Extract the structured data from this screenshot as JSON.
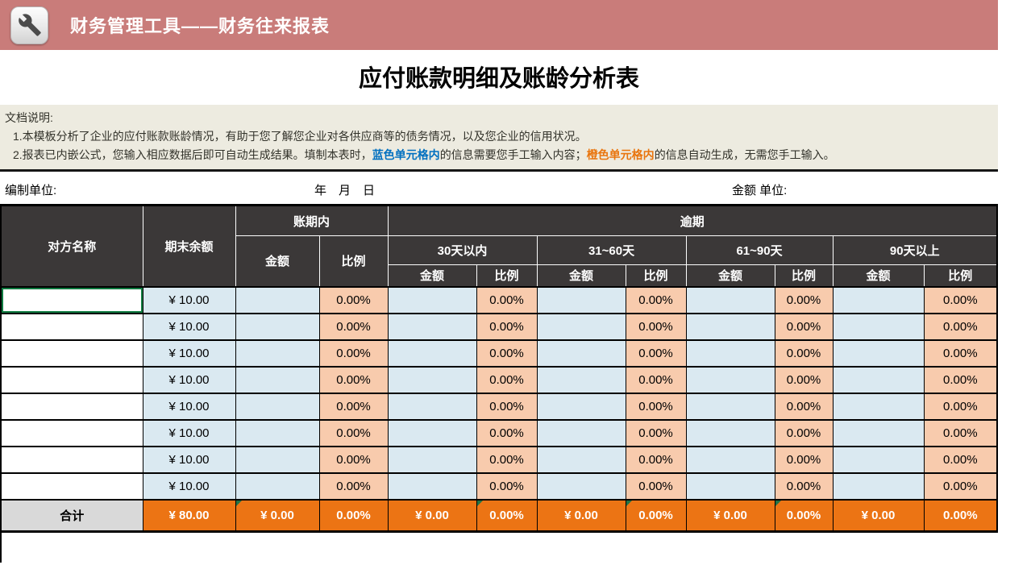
{
  "banner": {
    "title": "财务管理工具——财务往来报表",
    "icon": "wrench-icon",
    "bg_color": "#C97C7A"
  },
  "page_title": "应付账款明细及账龄分析表",
  "notice": {
    "heading": "文档说明:",
    "line1": "1.本模板分析了企业的应付账款账龄情况，有助于您了解您企业对各供应商等的债务情况，以及您企业的信用状况。",
    "line2": {
      "pre": "2.报表已内嵌公式，您输入相应数据后即可自动生成结果。填制本表时，",
      "blue": "蓝色单元格内",
      "mid": "的信息需要您手工输入内容；",
      "orange": "橙色单元格内",
      "post": "的信息自动生成，无需您手工输入。"
    }
  },
  "meta": {
    "unit_label": "编制单位:",
    "date_label": "年　月　日",
    "amount_unit_label": "金额 单位:"
  },
  "table": {
    "headers": {
      "counterparty": "对方名称",
      "ending_balance": "期末余额",
      "within_terms": "账期内",
      "overdue": "逾期",
      "amount": "金额",
      "ratio": "比例",
      "buckets": [
        "30天以内",
        "31~60天",
        "61~90天",
        "90天以上"
      ]
    },
    "rows": [
      {
        "name": "",
        "balance": "¥ 10.00",
        "cells": [
          "",
          "0.00%",
          "",
          "0.00%",
          "",
          "0.00%",
          "",
          "0.00%",
          "",
          "0.00%"
        ]
      },
      {
        "name": "",
        "balance": "¥ 10.00",
        "cells": [
          "",
          "0.00%",
          "",
          "0.00%",
          "",
          "0.00%",
          "",
          "0.00%",
          "",
          "0.00%"
        ]
      },
      {
        "name": "",
        "balance": "¥ 10.00",
        "cells": [
          "",
          "0.00%",
          "",
          "0.00%",
          "",
          "0.00%",
          "",
          "0.00%",
          "",
          "0.00%"
        ]
      },
      {
        "name": "",
        "balance": "¥ 10.00",
        "cells": [
          "",
          "0.00%",
          "",
          "0.00%",
          "",
          "0.00%",
          "",
          "0.00%",
          "",
          "0.00%"
        ]
      },
      {
        "name": "",
        "balance": "¥ 10.00",
        "cells": [
          "",
          "0.00%",
          "",
          "0.00%",
          "",
          "0.00%",
          "",
          "0.00%",
          "",
          "0.00%"
        ]
      },
      {
        "name": "",
        "balance": "¥ 10.00",
        "cells": [
          "",
          "0.00%",
          "",
          "0.00%",
          "",
          "0.00%",
          "",
          "0.00%",
          "",
          "0.00%"
        ]
      },
      {
        "name": "",
        "balance": "¥ 10.00",
        "cells": [
          "",
          "0.00%",
          "",
          "0.00%",
          "",
          "0.00%",
          "",
          "0.00%",
          "",
          "0.00%"
        ]
      },
      {
        "name": "",
        "balance": "¥ 10.00",
        "cells": [
          "",
          "0.00%",
          "",
          "0.00%",
          "",
          "0.00%",
          "",
          "0.00%",
          "",
          "0.00%"
        ]
      }
    ],
    "total": {
      "label": "合计",
      "balance": "¥ 80.00",
      "cells": [
        "¥ 0.00",
        "0.00%",
        "¥ 0.00",
        "0.00%",
        "¥ 0.00",
        "0.00%",
        "¥ 0.00",
        "0.00%",
        "¥ 0.00",
        "0.00%"
      ],
      "indicator_cells": [
        0,
        3,
        5,
        7
      ]
    }
  },
  "colors": {
    "banner_bg": "#C97C7A",
    "header_bg": "#3B3838",
    "input_cell_blue": "#DAE9F1",
    "formula_cell_orange": "#F8CBAD",
    "total_row_orange": "#EC7414",
    "total_label_gray": "#D9D9D9",
    "notice_bg": "#EDEBE0",
    "emphasis_blue": "#0070C0",
    "emphasis_orange": "#E9750E",
    "selection_green": "#107C41"
  }
}
